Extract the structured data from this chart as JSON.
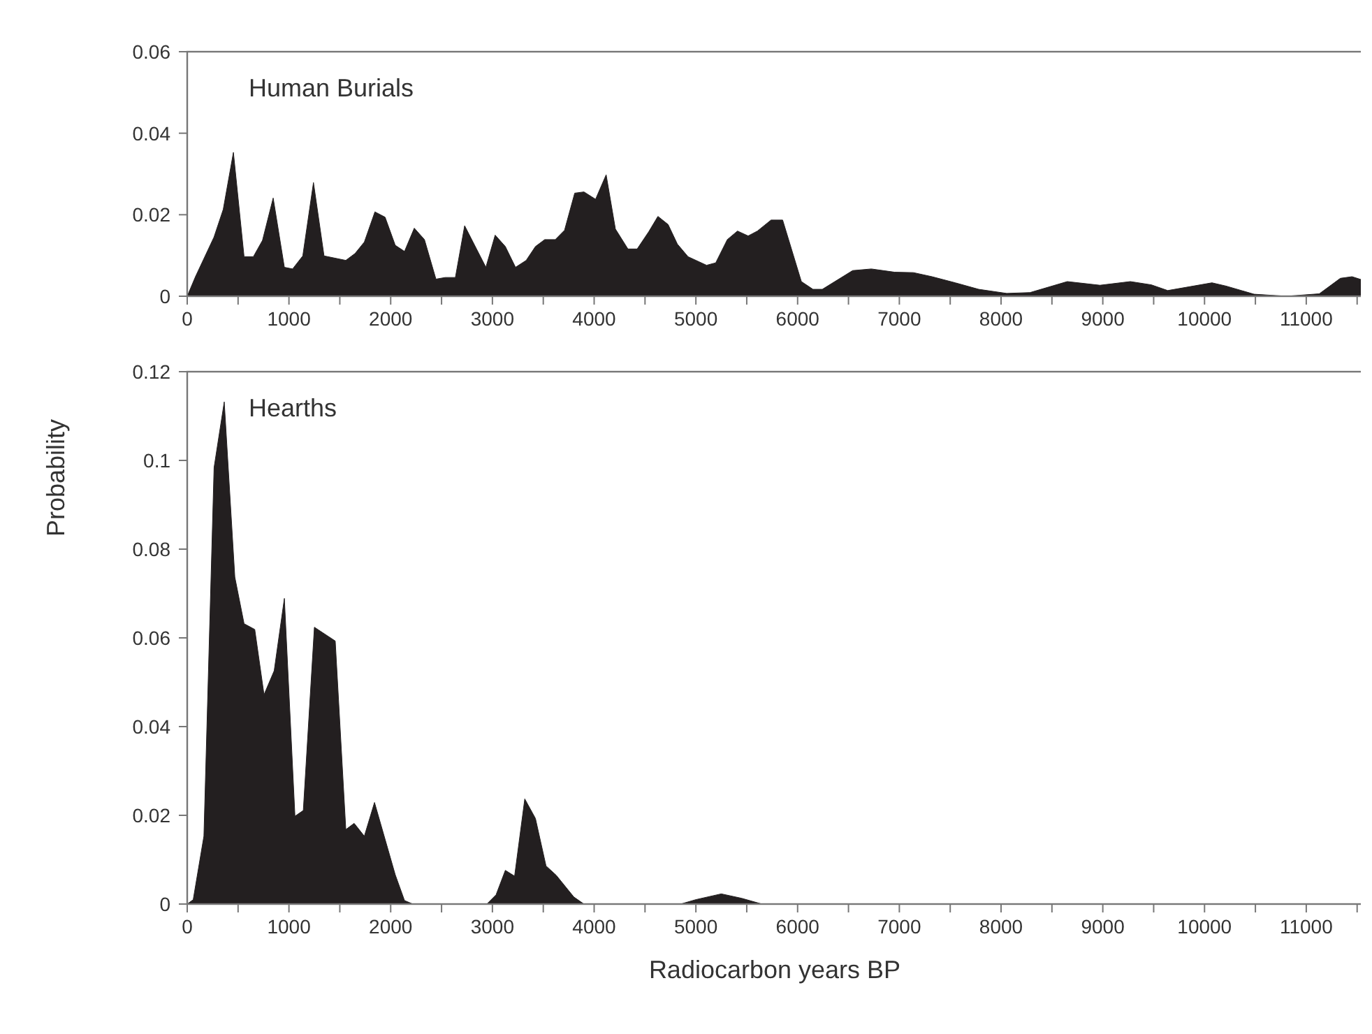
{
  "chart_data": [
    {
      "type": "area",
      "title": "Human Burials",
      "xlim": [
        0,
        11550
      ],
      "ylim": [
        0,
        0.06
      ],
      "yticks": [
        0,
        0.02,
        0.04,
        0.06
      ],
      "xticks": [
        0,
        {
          "value": 500,
          "label": null
        },
        1000,
        {
          "value": 1500,
          "label": null
        },
        2000,
        {
          "value": 2500,
          "label": null
        },
        3000,
        {
          "value": 3500,
          "label": null
        },
        4000,
        {
          "value": 4500,
          "label": null
        },
        5000,
        {
          "value": 5500,
          "label": null
        },
        6000,
        {
          "value": 6500,
          "label": null
        },
        7000,
        {
          "value": 7500,
          "label": null
        },
        8000,
        {
          "value": 8500,
          "label": null
        },
        9000,
        {
          "value": 9500,
          "label": null
        },
        10000,
        {
          "value": 10500,
          "label": null
        },
        11000,
        {
          "value": 11500,
          "label": null
        }
      ],
      "series": [
        {
          "color": "#231f20",
          "x": [
            0,
            81,
            263,
            354,
            454,
            559,
            650,
            740,
            845,
            955,
            1036,
            1136,
            1241,
            1345,
            1559,
            1650,
            1741,
            1845,
            1945,
            2045,
            2136,
            2232,
            2332,
            2445,
            2536,
            2636,
            2727,
            2936,
            3027,
            3127,
            3227,
            3332,
            3423,
            3514,
            3618,
            3709,
            3809,
            3900,
            4014,
            4118,
            4209,
            4332,
            4423,
            4536,
            4627,
            4727,
            4818,
            4923,
            5105,
            5195,
            5309,
            5409,
            5514,
            5605,
            5739,
            5853,
            6037,
            6151,
            6243,
            6541,
            6725,
            6954,
            7138,
            7321,
            7550,
            7780,
            8055,
            8284,
            8651,
            8972,
            9271,
            9477,
            9638,
            10073,
            10211,
            10486,
            10807,
            11128,
            11335,
            11450,
            11550
          ],
          "values": [
            0,
            0.0048,
            0.0145,
            0.0213,
            0.0353,
            0.0097,
            0.0097,
            0.0137,
            0.0241,
            0.0071,
            0.0067,
            0.0099,
            0.0279,
            0.0099,
            0.0088,
            0.0105,
            0.0133,
            0.0207,
            0.0194,
            0.0125,
            0.011,
            0.0167,
            0.0139,
            0.0042,
            0.0046,
            0.0046,
            0.0173,
            0.0071,
            0.015,
            0.0122,
            0.0071,
            0.0088,
            0.0122,
            0.0139,
            0.0139,
            0.0162,
            0.0253,
            0.0256,
            0.0238,
            0.0298,
            0.0165,
            0.0116,
            0.0116,
            0.0158,
            0.0196,
            0.0176,
            0.0128,
            0.0097,
            0.0076,
            0.0082,
            0.0139,
            0.016,
            0.0148,
            0.016,
            0.0187,
            0.0187,
            0.0036,
            0.0017,
            0.0017,
            0.0063,
            0.0067,
            0.0059,
            0.0058,
            0.0048,
            0.0033,
            0.0017,
            0.0007,
            0.0009,
            0.0036,
            0.0027,
            0.0036,
            0.0028,
            0.0014,
            0.0033,
            0.0025,
            0.0005,
            0,
            0.0006,
            0.0044,
            0.0048,
            0.004
          ]
        }
      ]
    },
    {
      "type": "area",
      "title": "Hearths",
      "xlabel": "Radiocarbon years BP",
      "ylabel": "Probability",
      "xlim": [
        0,
        11550
      ],
      "ylim": [
        0,
        0.12
      ],
      "yticks": [
        0,
        0.02,
        0.04,
        0.06,
        0.08,
        0.1,
        0.12
      ],
      "xticks": [
        0,
        {
          "value": 500,
          "label": null
        },
        1000,
        {
          "value": 1500,
          "label": null
        },
        2000,
        {
          "value": 2500,
          "label": null
        },
        3000,
        {
          "value": 3500,
          "label": null
        },
        4000,
        {
          "value": 4500,
          "label": null
        },
        5000,
        {
          "value": 5500,
          "label": null
        },
        6000,
        {
          "value": 6500,
          "label": null
        },
        7000,
        {
          "value": 7500,
          "label": null
        },
        8000,
        {
          "value": 8500,
          "label": null
        },
        9000,
        {
          "value": 9500,
          "label": null
        },
        10000,
        {
          "value": 10500,
          "label": null
        },
        11000,
        {
          "value": 11500,
          "label": null
        }
      ],
      "series": [
        {
          "color": "#231f20",
          "x": [
            0,
            59,
            164,
            264,
            364,
            468,
            559,
            664,
            755,
            855,
            955,
            1059,
            1141,
            1250,
            1455,
            1559,
            1641,
            1741,
            1841,
            2045,
            2136,
            2218,
            2945,
            3036,
            3127,
            3218,
            3318,
            3423,
            3527,
            3627,
            3800,
            3900,
            4850,
            5000,
            5250,
            5450,
            5650,
            11550
          ],
          "values": [
            0,
            0.001,
            0.0153,
            0.0984,
            0.1132,
            0.0737,
            0.0632,
            0.0619,
            0.0472,
            0.0526,
            0.0689,
            0.0198,
            0.0211,
            0.0624,
            0.0593,
            0.0168,
            0.0182,
            0.0153,
            0.0229,
            0.0066,
            0.0008,
            0,
            0,
            0.0021,
            0.0076,
            0.0063,
            0.0237,
            0.0193,
            0.0086,
            0.0065,
            0.0016,
            0,
            0,
            0.001,
            0.0023,
            0.0013,
            0,
            0
          ]
        }
      ]
    }
  ]
}
